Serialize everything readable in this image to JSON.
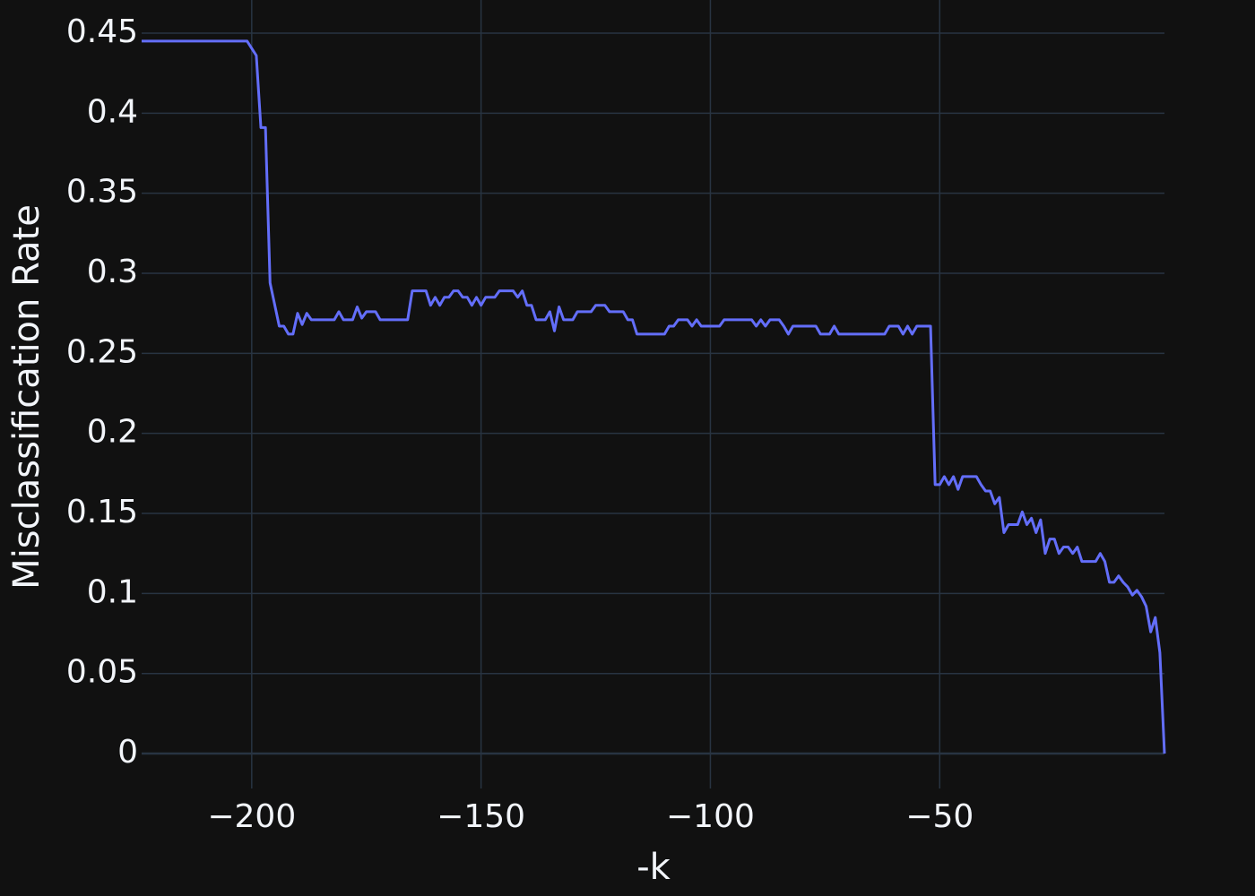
{
  "chart_data": {
    "type": "line",
    "x_label": "-k",
    "y_label": "Misclassification Rate",
    "color": "#636efa",
    "grid": true,
    "xlim": [
      -224,
      -1
    ],
    "ylim": [
      -0.0218,
      0.4707
    ],
    "xticks": [
      {
        "value": -200,
        "label": "−200"
      },
      {
        "value": -150,
        "label": "−150"
      },
      {
        "value": -100,
        "label": "−100"
      },
      {
        "value": -50,
        "label": "−50"
      }
    ],
    "yticks": [
      0,
      0.05,
      0.1,
      0.15,
      0.2,
      0.25,
      0.3,
      0.35,
      0.4,
      0.45
    ],
    "x": [
      -224,
      -201,
      -199,
      -198,
      -197,
      -196,
      -194,
      -193,
      -192,
      -191,
      -190,
      -189,
      -188,
      -187,
      -182,
      -181,
      -180,
      -178,
      -177,
      -176,
      -175,
      -173,
      -172,
      -166,
      -165,
      -162,
      -161,
      -160,
      -159,
      -158,
      -157,
      -156,
      -155,
      -154,
      -153,
      -152,
      -151,
      -150,
      -149,
      -147,
      -146,
      -143,
      -142,
      -141,
      -140,
      -139,
      -138,
      -136,
      -135,
      -134,
      -133,
      -132,
      -130,
      -129,
      -126,
      -125,
      -123,
      -122,
      -119,
      -118,
      -117,
      -116,
      -110,
      -109,
      -108,
      -107,
      -105,
      -104,
      -103,
      -102,
      -98,
      -97,
      -91,
      -90,
      -89,
      -88,
      -87,
      -85,
      -84,
      -83,
      -82,
      -77,
      -76,
      -74,
      -73,
      -72,
      -62,
      -61,
      -59,
      -58,
      -57,
      -56,
      -55,
      -52,
      -51,
      -50,
      -49,
      -48,
      -47,
      -46,
      -45,
      -42,
      -41,
      -40,
      -39,
      -38,
      -37,
      -36,
      -35,
      -33,
      -32,
      -31,
      -30,
      -29,
      -28,
      -27,
      -26,
      -25,
      -24,
      -23,
      -22,
      -21,
      -20,
      -19,
      -16,
      -15,
      -14,
      -13,
      -12,
      -11,
      -10,
      -9,
      -8,
      -7,
      -6,
      -5,
      -4,
      -3,
      -2,
      -1
    ],
    "values": [
      0.445,
      0.445,
      0.436,
      0.391,
      0.391,
      0.294,
      0.267,
      0.267,
      0.262,
      0.262,
      0.275,
      0.268,
      0.275,
      0.271,
      0.271,
      0.276,
      0.271,
      0.271,
      0.279,
      0.272,
      0.276,
      0.276,
      0.271,
      0.271,
      0.289,
      0.289,
      0.28,
      0.285,
      0.28,
      0.285,
      0.285,
      0.289,
      0.289,
      0.285,
      0.285,
      0.28,
      0.285,
      0.28,
      0.285,
      0.285,
      0.289,
      0.289,
      0.285,
      0.289,
      0.28,
      0.28,
      0.271,
      0.271,
      0.276,
      0.264,
      0.279,
      0.271,
      0.271,
      0.276,
      0.276,
      0.28,
      0.28,
      0.276,
      0.276,
      0.271,
      0.271,
      0.262,
      0.262,
      0.267,
      0.267,
      0.271,
      0.271,
      0.267,
      0.271,
      0.267,
      0.267,
      0.271,
      0.271,
      0.267,
      0.271,
      0.267,
      0.271,
      0.271,
      0.267,
      0.262,
      0.267,
      0.267,
      0.262,
      0.262,
      0.267,
      0.262,
      0.262,
      0.267,
      0.267,
      0.262,
      0.267,
      0.262,
      0.267,
      0.267,
      0.168,
      0.168,
      0.173,
      0.168,
      0.173,
      0.165,
      0.173,
      0.173,
      0.168,
      0.164,
      0.164,
      0.156,
      0.16,
      0.138,
      0.143,
      0.143,
      0.151,
      0.143,
      0.147,
      0.138,
      0.146,
      0.125,
      0.134,
      0.134,
      0.125,
      0.129,
      0.129,
      0.125,
      0.129,
      0.12,
      0.12,
      0.125,
      0.12,
      0.107,
      0.107,
      0.111,
      0.107,
      0.104,
      0.099,
      0.102,
      0.098,
      0.092,
      0.076,
      0.085,
      0.063,
      0
    ]
  }
}
